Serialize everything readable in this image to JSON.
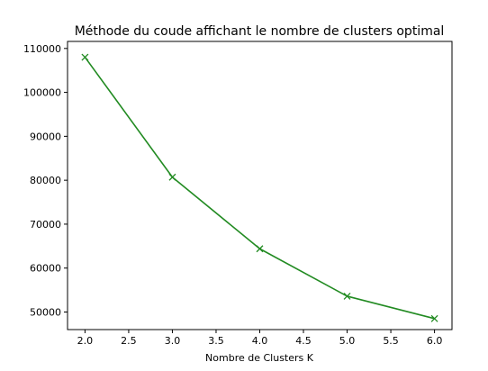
{
  "chart_data": {
    "type": "line",
    "title": "Méthode du coude affichant le nombre de clusters optimal",
    "xlabel": "Nombre de Clusters K",
    "ylabel": "",
    "xlim": [
      1.8,
      6.2
    ],
    "ylim": [
      46000,
      111600
    ],
    "x_ticks": [
      "2.0",
      "2.5",
      "3.0",
      "3.5",
      "4.0",
      "4.5",
      "5.0",
      "5.5",
      "6.0"
    ],
    "y_ticks": [
      "50000",
      "60000",
      "70000",
      "80000",
      "90000",
      "100000",
      "110000"
    ],
    "grid": false,
    "series": [
      {
        "color": "#228b22",
        "marker": "x",
        "x": [
          2,
          3,
          4,
          5,
          6
        ],
        "y": [
          108000,
          80700,
          64400,
          53600,
          48500
        ]
      }
    ]
  }
}
